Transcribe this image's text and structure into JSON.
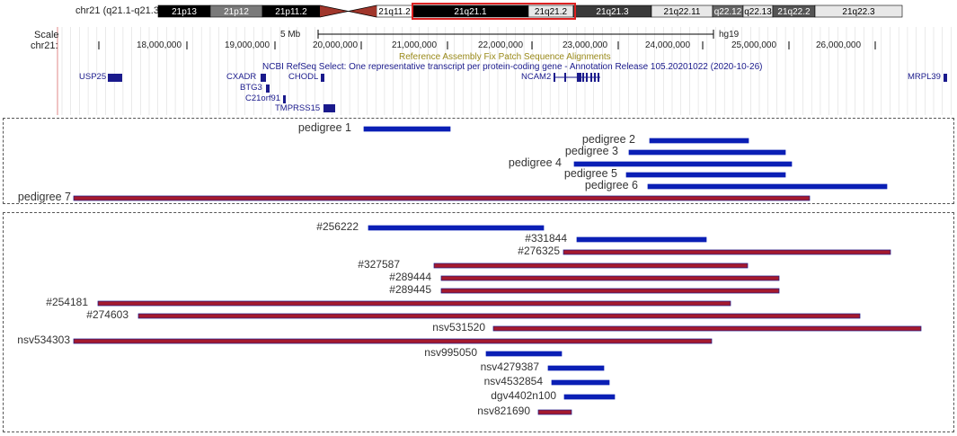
{
  "ideogram": {
    "chrom_label": "chr21 (q21.1-q21.3)",
    "bands": [
      {
        "name": "21p13",
        "color": "#000000",
        "text_color": "#ffffff"
      },
      {
        "name": "21p12",
        "color": "#7a7a7a",
        "text_color": "#ffffff"
      },
      {
        "name": "21p11.2",
        "color": "#000000",
        "text_color": "#ffffff"
      },
      {
        "name": "centromere",
        "color": "#a0362b"
      },
      {
        "name": "21q11.2",
        "color": "#ffffff",
        "text_color": "#000000"
      },
      {
        "name": "21q21.1",
        "color": "#000000",
        "text_color": "#ffffff"
      },
      {
        "name": "21q21.2",
        "color": "#e8e8e8",
        "text_color": "#000000"
      },
      {
        "name": "21q21.3",
        "color": "#3a3a3a",
        "text_color": "#ffffff"
      },
      {
        "name": "21q22.11",
        "color": "#e8e8e8",
        "text_color": "#000000"
      },
      {
        "name": "q22.12",
        "color": "#666666",
        "text_color": "#ffffff"
      },
      {
        "name": "q22.13",
        "color": "#e8e8e8",
        "text_color": "#000000"
      },
      {
        "name": "21q22.2",
        "color": "#555555",
        "text_color": "#ffffff"
      },
      {
        "name": "21q22.3",
        "color": "#e8e8e8",
        "text_color": "#000000"
      }
    ],
    "highlight_color": "#dd2222"
  },
  "browser": {
    "scale_label": "Scale",
    "chr_label": "chr21:",
    "scalebar_text": "5 Mb",
    "assembly": "hg19",
    "position_ticks": [
      "18,000,000",
      "19,000,000",
      "20,000,000",
      "21,000,000",
      "22,000,000",
      "23,000,000",
      "24,000,000",
      "25,000,000",
      "26,000,000"
    ],
    "fix_patch_title": "Reference Assembly Fix Patch Sequence Alignments",
    "refseq_title": "NCBI RefSeq Select: One representative transcript per protein-coding gene - Annotation Release 105.20201022 (2020-10-26)",
    "genes": [
      "USP25",
      "CXADR",
      "BTG3",
      "C21orf91",
      "CHODL",
      "TMPRSS15",
      "NCAM2",
      "MRPL39"
    ],
    "title_color": "#9a8a1a",
    "gene_color": "#1a1a8c"
  },
  "colors": {
    "blue": "#0a1fb5",
    "red": "#a41a2e",
    "red_edge": "#1a1a8c"
  },
  "pedigrees": [
    {
      "label": "pedigree 1",
      "color": "blue"
    },
    {
      "label": "pedigree 2",
      "color": "blue"
    },
    {
      "label": "pedigree 3",
      "color": "blue"
    },
    {
      "label": "pedigree 4",
      "color": "blue"
    },
    {
      "label": "pedigree 5",
      "color": "blue"
    },
    {
      "label": "pedigree 6",
      "color": "blue"
    },
    {
      "label": "pedigree 7",
      "color": "red"
    }
  ],
  "cnvs": [
    {
      "label": "#256222",
      "color": "blue"
    },
    {
      "label": "#331844",
      "color": "blue"
    },
    {
      "label": "#276325",
      "color": "red"
    },
    {
      "label": "#327587",
      "color": "red"
    },
    {
      "label": "#289444",
      "color": "red"
    },
    {
      "label": "#289445",
      "color": "red"
    },
    {
      "label": "#254181",
      "color": "red"
    },
    {
      "label": "#274603",
      "color": "red"
    },
    {
      "label": "nsv531520",
      "color": "red"
    },
    {
      "label": "nsv534303",
      "color": "red"
    },
    {
      "label": "nsv995050",
      "color": "blue"
    },
    {
      "label": "nsv4279387",
      "color": "blue"
    },
    {
      "label": "nsv4532854",
      "color": "blue"
    },
    {
      "label": "dgv4402n100",
      "color": "blue"
    },
    {
      "label": "nsv821690",
      "color": "red"
    }
  ]
}
